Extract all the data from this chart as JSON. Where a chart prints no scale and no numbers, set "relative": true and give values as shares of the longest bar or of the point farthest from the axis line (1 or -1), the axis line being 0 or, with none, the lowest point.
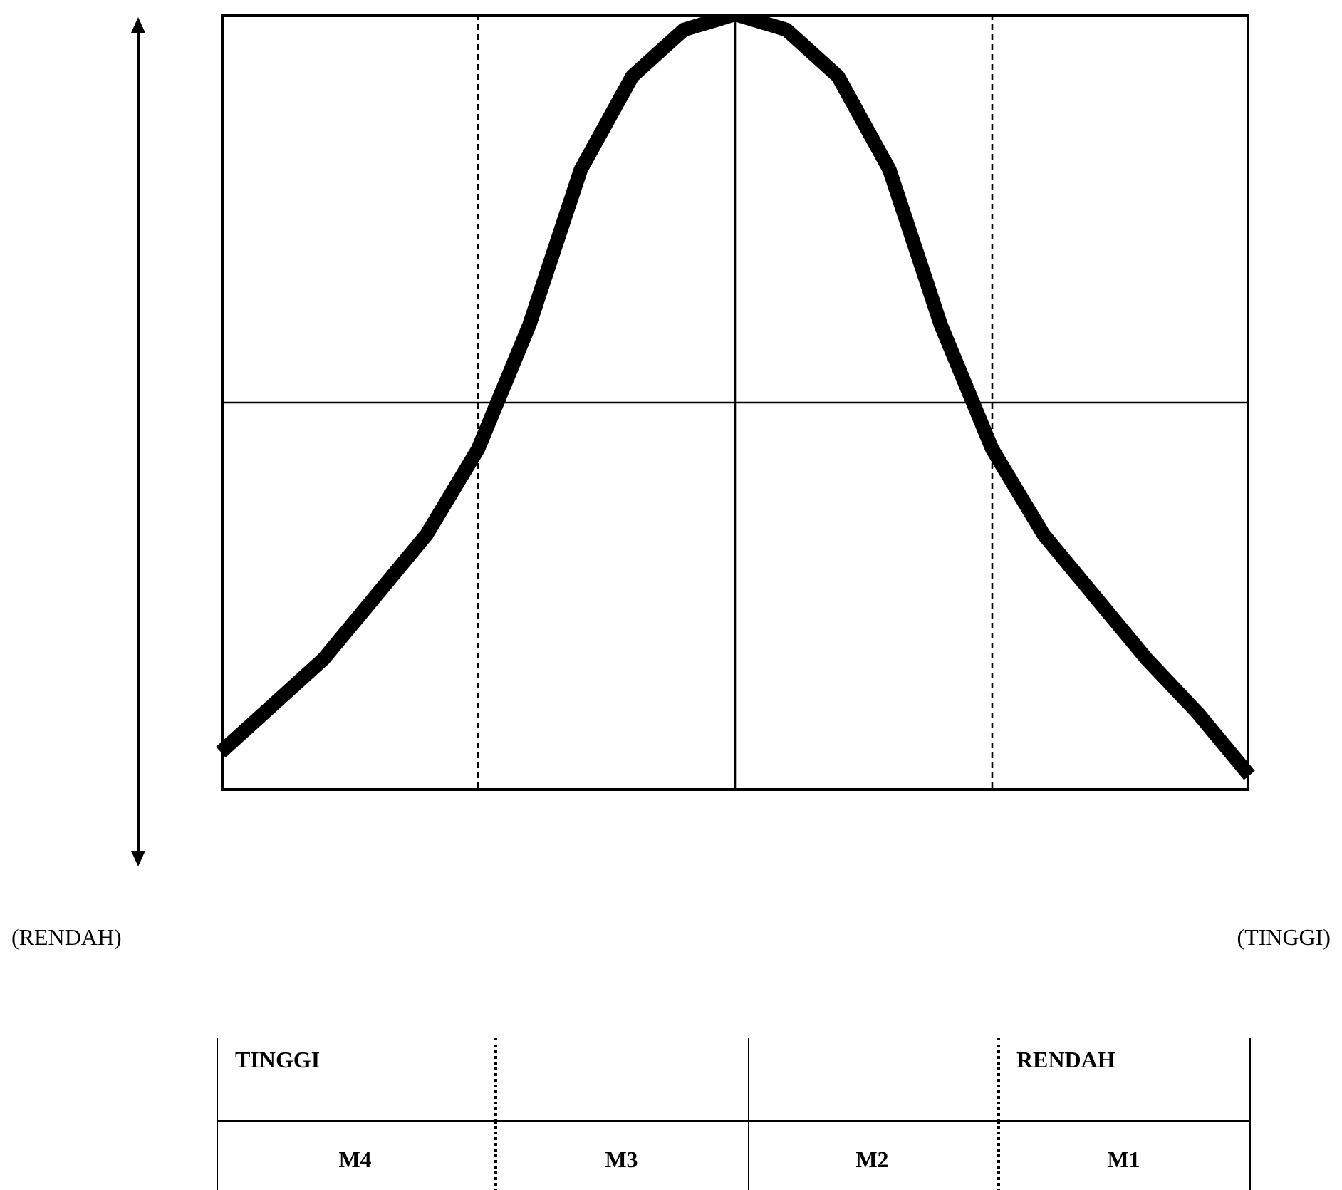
{
  "chart_data": {
    "type": "line",
    "relative": true,
    "categories": [
      null,
      null,
      null,
      null,
      null,
      null,
      null,
      null,
      null,
      null,
      null,
      null,
      null,
      null,
      null,
      null,
      null,
      null,
      null,
      null,
      null
    ],
    "tick_labels": false,
    "marker": "none",
    "line_style": "solid",
    "series": [
      {
        "color": "#000000",
        "values": [
          0.05,
          0.11,
          0.17,
          0.25,
          0.33,
          0.44,
          0.6,
          0.8,
          0.92,
          0.98,
          1,
          0.98,
          0.92,
          0.8,
          0.6,
          0.44,
          0.33,
          0.25,
          0.17,
          0.1,
          0.02
        ]
      }
    ],
    "ref_lines": [
      {
        "axis": "y",
        "value": 0.5,
        "line_style": "solid",
        "color": "#000000"
      }
    ],
    "annotations": [
      "(RENDAH)",
      "(TINGGI)",
      "TINGGI",
      "RENDAH",
      "M4",
      "M3",
      "M2",
      "M1"
    ]
  }
}
